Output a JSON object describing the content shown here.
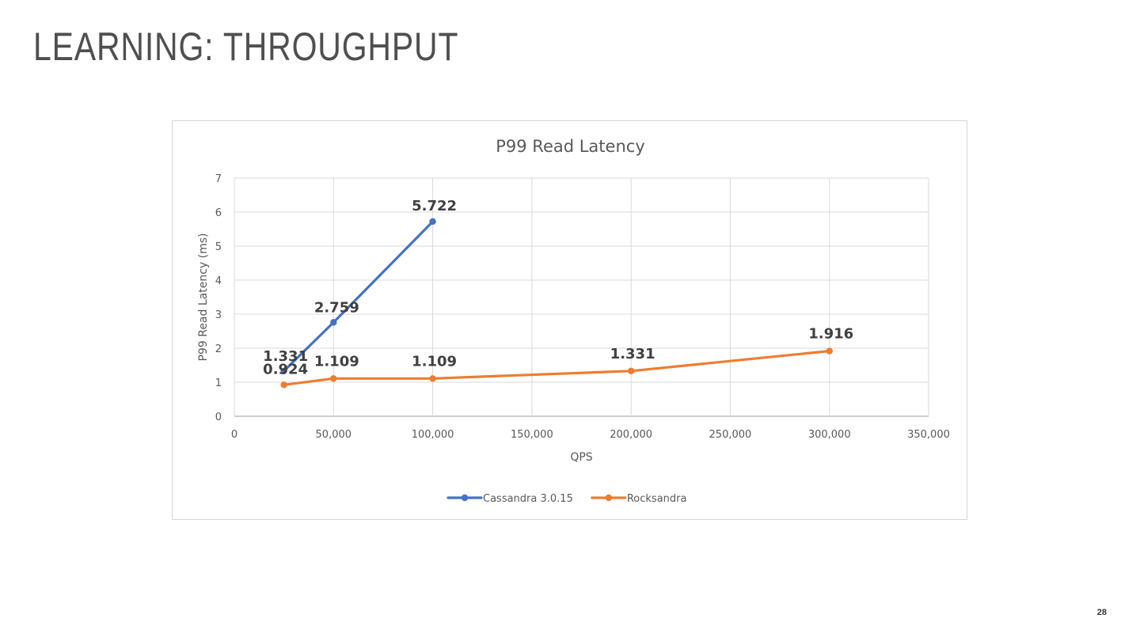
{
  "slide": {
    "title": "LEARNING: THROUGHPUT",
    "page_number": "28"
  },
  "chart_data": {
    "type": "line",
    "title": "P99 Read Latency",
    "xlabel": "QPS",
    "ylabel": "P99 Read Latency (ms)",
    "xlim": [
      0,
      350000
    ],
    "ylim": [
      0,
      7
    ],
    "x_ticks": [
      0,
      50000,
      100000,
      150000,
      200000,
      250000,
      300000,
      350000
    ],
    "x_tick_labels": [
      "0",
      "50,000",
      "100,000",
      "150,000",
      "200,000",
      "250,000",
      "300,000",
      "350,000"
    ],
    "y_ticks": [
      0,
      1,
      2,
      3,
      4,
      5,
      6,
      7
    ],
    "y_tick_labels": [
      "0",
      "1",
      "2",
      "3",
      "4",
      "5",
      "6",
      "7"
    ],
    "grid": true,
    "legend_position": "bottom",
    "series": [
      {
        "name": "Cassandra 3.0.15",
        "color": "#4472c4",
        "points": [
          {
            "x": 25000,
            "y": 1.331,
            "label": "1.331"
          },
          {
            "x": 50000,
            "y": 2.759,
            "label": "2.759"
          },
          {
            "x": 100000,
            "y": 5.722,
            "label": "5.722"
          }
        ]
      },
      {
        "name": "Rocksandra",
        "color": "#ed7d31",
        "points": [
          {
            "x": 25000,
            "y": 0.924,
            "label": "0.924"
          },
          {
            "x": 50000,
            "y": 1.109,
            "label": "1.109"
          },
          {
            "x": 100000,
            "y": 1.109,
            "label": "1.109"
          },
          {
            "x": 200000,
            "y": 1.331,
            "label": "1.331"
          },
          {
            "x": 300000,
            "y": 1.916,
            "label": "1.916"
          }
        ]
      }
    ]
  }
}
